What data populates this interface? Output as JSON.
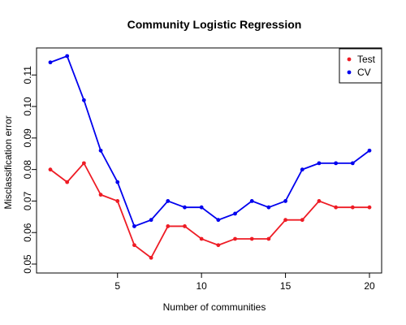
{
  "chart_data": {
    "type": "line",
    "title": "Community Logistic Regression",
    "xlabel": "Number of communities",
    "ylabel": "Misclassification error",
    "x": [
      1,
      2,
      3,
      4,
      5,
      6,
      7,
      8,
      9,
      10,
      11,
      12,
      13,
      14,
      15,
      16,
      17,
      18,
      19,
      20
    ],
    "xlim": [
      1,
      20
    ],
    "ylim": [
      0.05,
      0.116
    ],
    "xticks": [
      5,
      10,
      15,
      20
    ],
    "yticks": [
      0.05,
      0.06,
      0.07,
      0.08,
      0.09,
      0.1,
      0.11
    ],
    "xtick_labels": [
      "5",
      "10",
      "15",
      "20"
    ],
    "ytick_labels": [
      "0.05",
      "0.06",
      "0.07",
      "0.08",
      "0.09",
      "0.10",
      "0.11"
    ],
    "grid": false,
    "legend_position": "top-right",
    "series": [
      {
        "name": "Test",
        "color": "#ee1c25",
        "values": [
          0.08,
          0.076,
          0.082,
          0.072,
          0.07,
          0.056,
          0.052,
          0.062,
          0.062,
          0.058,
          0.056,
          0.058,
          0.058,
          0.058,
          0.064,
          0.064,
          0.07,
          0.068,
          0.068,
          0.068
        ]
      },
      {
        "name": "CV",
        "color": "#0000ee",
        "values": [
          0.114,
          0.116,
          0.102,
          0.086,
          0.076,
          0.062,
          0.064,
          0.07,
          0.068,
          0.068,
          0.064,
          0.066,
          0.07,
          0.068,
          0.07,
          0.08,
          0.082,
          0.082,
          0.082,
          0.086
        ]
      }
    ]
  }
}
